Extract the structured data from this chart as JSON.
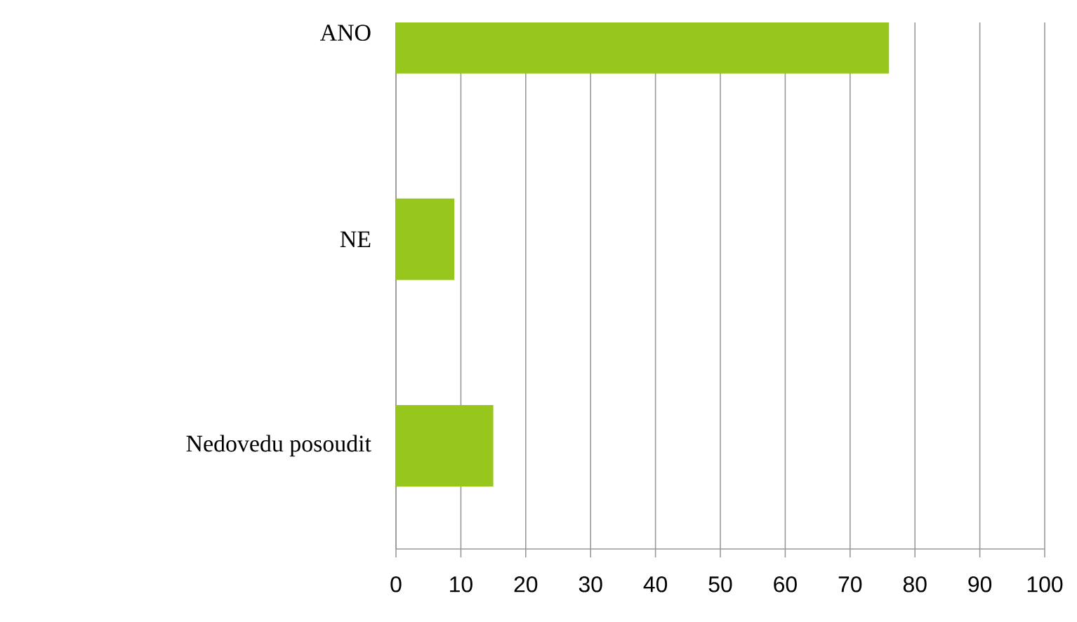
{
  "chart_data": {
    "type": "bar",
    "orientation": "horizontal",
    "categories": [
      "ANO",
      "NE",
      "Nedovedu posoudit"
    ],
    "values": [
      76,
      9,
      15
    ],
    "color": "#97c71c",
    "xlim": [
      0,
      100
    ],
    "xticks": [
      0,
      10,
      20,
      30,
      40,
      50,
      60,
      70,
      80,
      90,
      100
    ],
    "grid": "x"
  }
}
